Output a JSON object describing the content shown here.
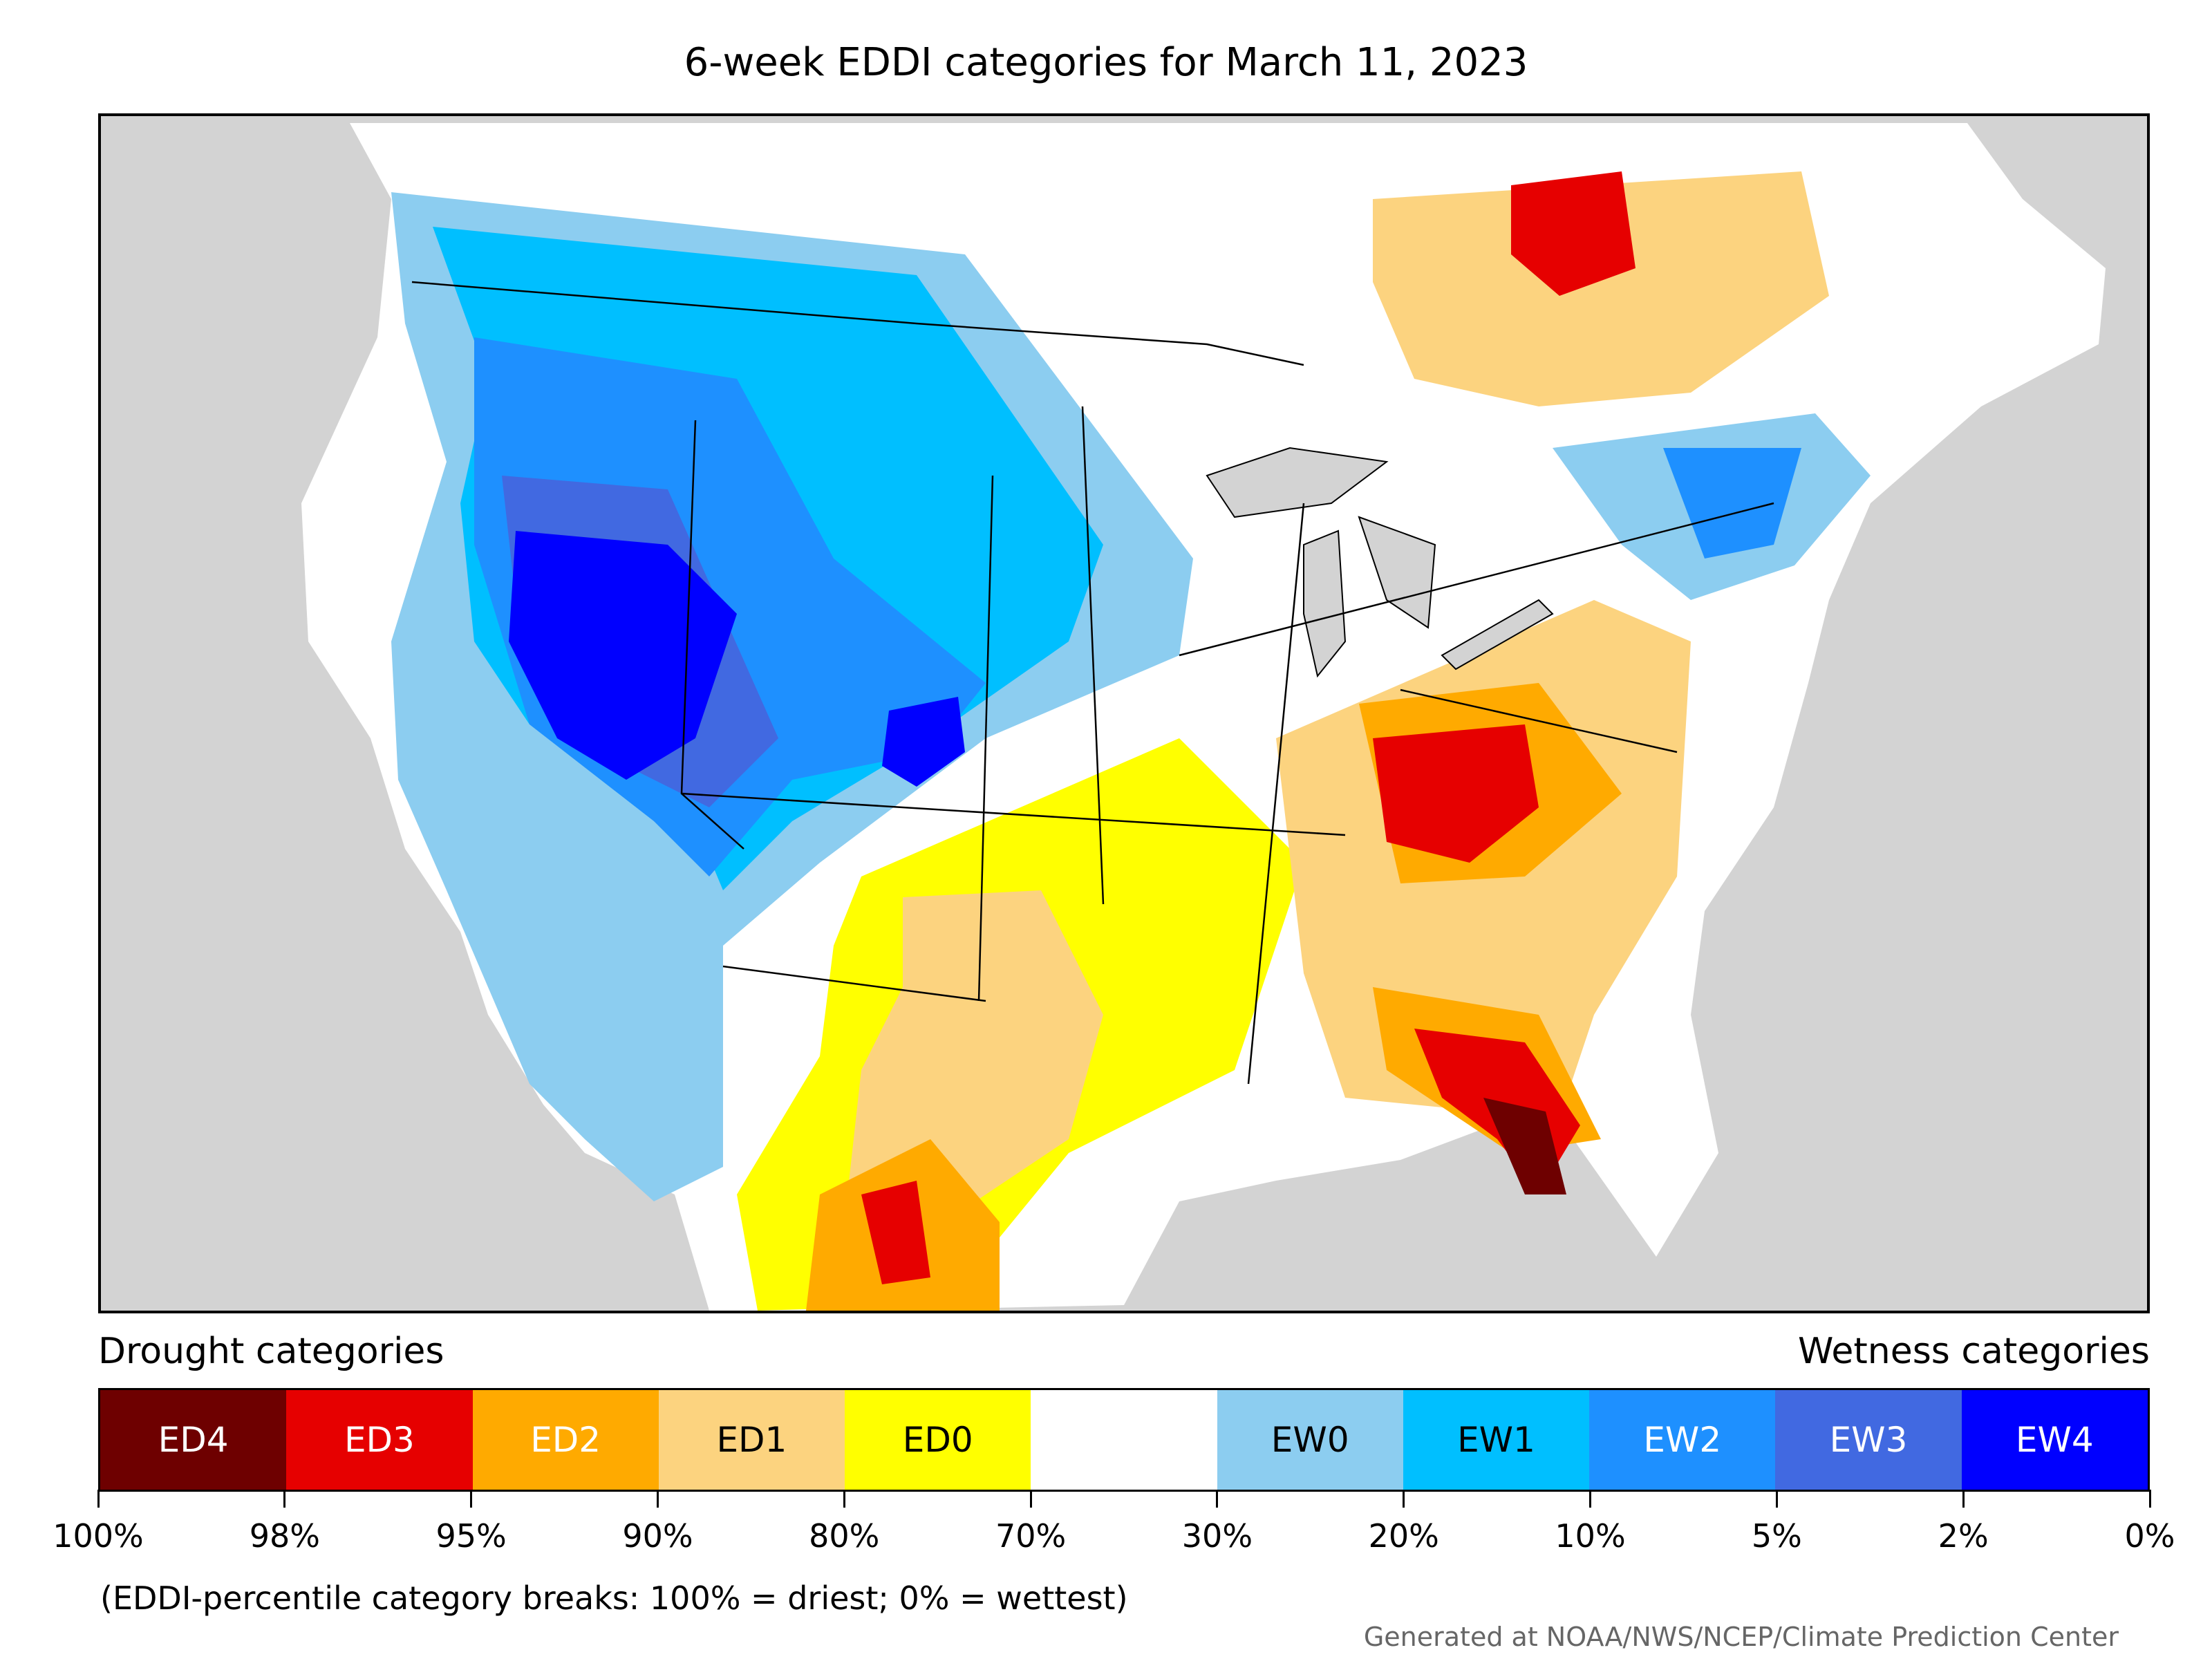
{
  "title": "6-week EDDI categories for March 11, 2023",
  "legend": {
    "left_heading": "Drought categories",
    "right_heading": "Wetness categories",
    "categories": [
      {
        "label": "ED4",
        "color": "#6e0000",
        "text_color": "#ffffff"
      },
      {
        "label": "ED3",
        "color": "#e60000",
        "text_color": "#ffffff"
      },
      {
        "label": "ED2",
        "color": "#ffaa00",
        "text_color": "#ffffff"
      },
      {
        "label": "ED1",
        "color": "#fcd37f",
        "text_color": "#000000"
      },
      {
        "label": "ED0",
        "color": "#ffff00",
        "text_color": "#000000"
      },
      {
        "label": "",
        "color": "#ffffff",
        "text_color": "#000000"
      },
      {
        "label": "EW0",
        "color": "#8ccdf0",
        "text_color": "#000000"
      },
      {
        "label": "EW1",
        "color": "#00bfff",
        "text_color": "#000000"
      },
      {
        "label": "EW2",
        "color": "#1e90ff",
        "text_color": "#ffffff"
      },
      {
        "label": "EW3",
        "color": "#4169e1",
        "text_color": "#ffffff"
      },
      {
        "label": "EW4",
        "color": "#0000ff",
        "text_color": "#ffffff"
      }
    ],
    "breaks": [
      "100%",
      "98%",
      "95%",
      "90%",
      "80%",
      "70%",
      "30%",
      "20%",
      "10%",
      "5%",
      "2%",
      "0%"
    ]
  },
  "footnote": "(EDDI-percentile category breaks: 100% = driest; 0% = wettest)",
  "credit": "Generated at NOAA/NWS/NCEP/Climate Prediction Center"
}
